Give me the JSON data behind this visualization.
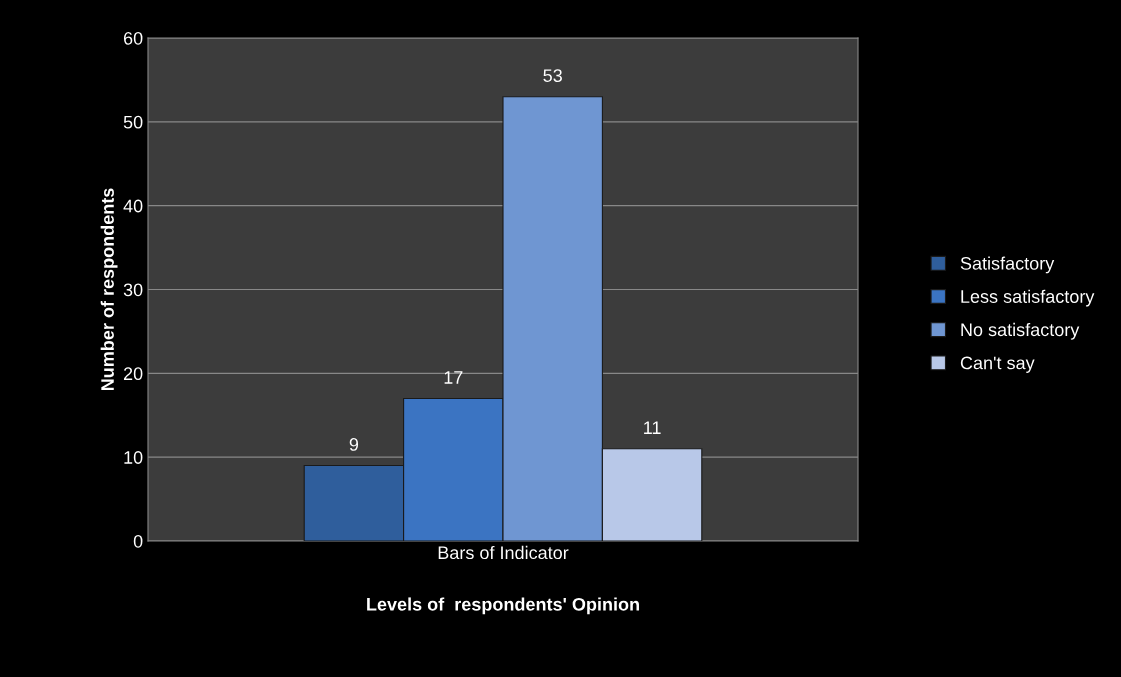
{
  "chart_data": {
    "type": "bar",
    "xlabel": "Levels of  respondents' Opinion",
    "ylabel": "Number of respondents",
    "categories": [
      "Bars of Indicator"
    ],
    "series": [
      {
        "name": "Satisfactory",
        "color": "#2f5e9c",
        "values": [
          9
        ]
      },
      {
        "name": "Less satisfactory",
        "color": "#3b74c2",
        "values": [
          17
        ]
      },
      {
        "name": "No satisfactory",
        "color": "#6f96d2",
        "values": [
          53
        ]
      },
      {
        "name": "Can't say",
        "color": "#b8c8e8",
        "values": [
          11
        ]
      }
    ],
    "ylim": [
      0,
      60
    ],
    "yticks": [
      0,
      10,
      20,
      30,
      40,
      50,
      60
    ],
    "grid": "y",
    "legend": "right",
    "data_labels": true
  }
}
